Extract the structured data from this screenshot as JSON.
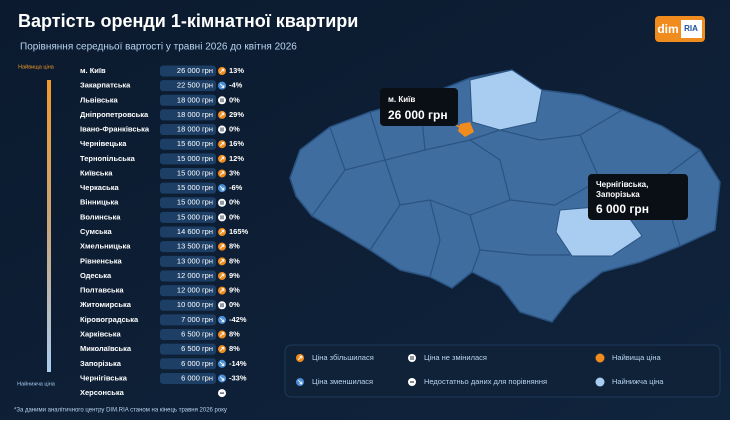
{
  "header": {
    "title": "Вартість оренди 1-кімнатної квартири",
    "subtitle": "Порівняння середньої вартості у травні 2026 до квітня 2026",
    "logo": "dim",
    "logo_badge": "RIA"
  },
  "scale": {
    "top": "Найвища ціна",
    "bottom": "Найнижча ціна"
  },
  "rows": [
    {
      "region": "м. Київ",
      "price": "26 000 грн",
      "change": "13%"
    },
    {
      "region": "Закарпатська",
      "price": "22 500 грн",
      "change": "-4%"
    },
    {
      "region": "Львівська",
      "price": "18 000 грн",
      "change": "0%"
    },
    {
      "region": "Дніпропетровська",
      "price": "18 000 грн",
      "change": "29%"
    },
    {
      "region": "Івано-Франківська",
      "price": "18 000 грн",
      "change": "0%"
    },
    {
      "region": "Чернівецька",
      "price": "15 600 грн",
      "change": "16%"
    },
    {
      "region": "Тернопільська",
      "price": "15 000 грн",
      "change": "12%"
    },
    {
      "region": "Київська",
      "price": "15 000 грн",
      "change": "3%"
    },
    {
      "region": "Черкаська",
      "price": "15 000 грн",
      "change": "-6%"
    },
    {
      "region": "Вінницька",
      "price": "15 000 грн",
      "change": "0%"
    },
    {
      "region": "Волинська",
      "price": "15 000 грн",
      "change": "0%"
    },
    {
      "region": "Сумська",
      "price": "14 600 грн",
      "change": "165%"
    },
    {
      "region": "Хмельницька",
      "price": "13 500 грн",
      "change": "8%"
    },
    {
      "region": "Рівненська",
      "price": "13 000 грн",
      "change": "8%"
    },
    {
      "region": "Одеська",
      "price": "12 000 грн",
      "change": "9%"
    },
    {
      "region": "Полтавська",
      "price": "12 000 грн",
      "change": "9%"
    },
    {
      "region": "Житомирська",
      "price": "10 000 грн",
      "change": "0%"
    },
    {
      "region": "Кіровоградська",
      "price": "7 000 грн",
      "change": "-42%"
    },
    {
      "region": "Харківська",
      "price": "6 500 грн",
      "change": "8%"
    },
    {
      "region": "Миколаївська",
      "price": "6 500 грн",
      "change": "8%"
    },
    {
      "region": "Запорізька",
      "price": "6 000 грн",
      "change": "-14%"
    },
    {
      "region": "Чернігівська",
      "price": "6 000 грн",
      "change": "-33%"
    },
    {
      "region": "Херсонська"
    }
  ],
  "map": {
    "max_region": "м. Київ",
    "max_price": "26 000 грн",
    "min_region": "Чернігівська,\nЗапорізька",
    "min_price": "6 000 грн"
  },
  "legend": {
    "up": "Ціна збільшилася",
    "down": "Ціна зменшилася",
    "same": "Ціна не змінилася",
    "none": "Недостатньо даних для порівняння",
    "max": "Найвища ціна",
    "min": "Найнижча ціна"
  },
  "footnote": "*За даними аналітичного центру DIM.RIA станом на кінець травня 2026 року"
}
